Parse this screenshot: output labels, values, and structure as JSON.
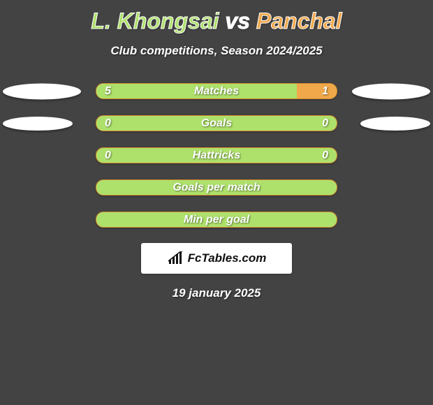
{
  "background_color": "#434343",
  "title": {
    "player1": "L. Khongsai",
    "vs": "vs",
    "player2": "Panchal",
    "player1_color": "#aee16b",
    "player2_color": "#f0a84a",
    "fontsize": 32
  },
  "subtitle": "Club competitions, Season 2024/2025",
  "colors": {
    "green": "#aee16b",
    "green_border": "#8bc34a",
    "orange": "#f0a84a",
    "orange_border": "#d38a2e",
    "white": "#ffffff"
  },
  "bar_geometry": {
    "total_width": 346,
    "height": 23,
    "radius": 11
  },
  "rows": [
    {
      "label": "Matches",
      "left_val": "5",
      "right_val": "1",
      "left_pct": 0.833,
      "right_pct": 0.167,
      "ellipse_left_size": 1,
      "ellipse_right_size": 1
    },
    {
      "label": "Goals",
      "left_val": "0",
      "right_val": "0",
      "left_pct": 0.0,
      "right_pct": 0.0,
      "ellipse_left_size": 2,
      "ellipse_right_size": 2
    },
    {
      "label": "Hattricks",
      "left_val": "0",
      "right_val": "0",
      "left_pct": 0.0,
      "right_pct": 0.0,
      "ellipse_left_size": 0,
      "ellipse_right_size": 0
    },
    {
      "label": "Goals per match",
      "left_val": "",
      "right_val": "",
      "left_pct": 0.0,
      "right_pct": 0.0,
      "ellipse_left_size": 0,
      "ellipse_right_size": 0
    },
    {
      "label": "Min per goal",
      "left_val": "",
      "right_val": "",
      "left_pct": 0.0,
      "right_pct": 0.0,
      "ellipse_left_size": 0,
      "ellipse_right_size": 0
    }
  ],
  "brand": "FcTables.com",
  "date": "19 january 2025"
}
